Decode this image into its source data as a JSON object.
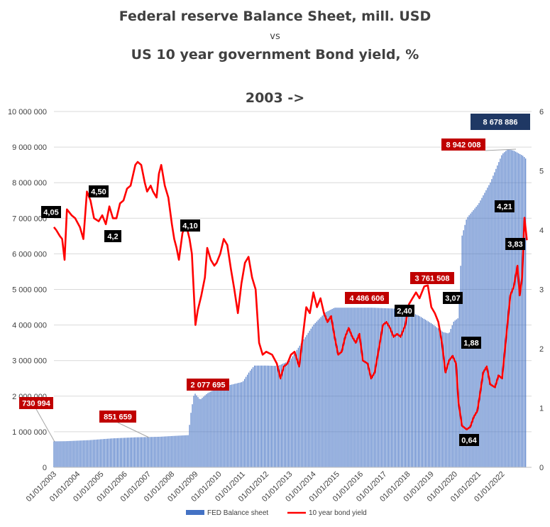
{
  "chart_data": {
    "type": "bar+line",
    "title": "Federal reserve Balance Sheet, mill. USD",
    "title_vs": "vs",
    "subtitle": "US 10 year government Bond yield, %",
    "period": "2003 ->",
    "left_axis": {
      "ylim": [
        0,
        10000000
      ],
      "ticks": [
        "0",
        "1 000 000",
        "2 000 000",
        "3 000 000",
        "4 000 000",
        "5 000 000",
        "6 000 000",
        "7 000 000",
        "8 000 000",
        "9 000 000",
        "10 000 000"
      ]
    },
    "right_axis": {
      "ylim": [
        0,
        6
      ],
      "ticks": [
        "0",
        "1",
        "2",
        "3",
        "4",
        "5",
        "6"
      ]
    },
    "x_axis": {
      "start": 2003.0,
      "end": 2023.25,
      "ticks": [
        "01/01/2003",
        "01/01/2004",
        "01/01/2005",
        "01/01/2006",
        "01/01/2007",
        "01/01/2008",
        "01/01/2009",
        "01/01/2010",
        "01/01/2011",
        "01/01/2012",
        "01/01/2013",
        "01/01/2014",
        "01/01/2015",
        "01/01/2016",
        "01/01/2017",
        "01/01/2018",
        "01/01/2019",
        "01/01/2020",
        "01/01/2021",
        "01/01/2022"
      ]
    },
    "grid": true,
    "legend_position": "bottom",
    "series": [
      {
        "name": "FED Balance sheet",
        "kind": "bar",
        "axis": "left",
        "color": "#4472C4",
        "points": [
          [
            2003.0,
            730994
          ],
          [
            2003.5,
            735000
          ],
          [
            2004.0,
            750000
          ],
          [
            2004.5,
            765000
          ],
          [
            2005.0,
            790000
          ],
          [
            2005.5,
            815000
          ],
          [
            2006.0,
            830000
          ],
          [
            2006.5,
            845000
          ],
          [
            2007.0,
            851659
          ],
          [
            2007.5,
            860000
          ],
          [
            2008.0,
            880000
          ],
          [
            2008.7,
            905000
          ],
          [
            2008.8,
            1500000
          ],
          [
            2008.95,
            2100000
          ],
          [
            2009.2,
            1900000
          ],
          [
            2009.5,
            2077695
          ],
          [
            2010.0,
            2250000
          ],
          [
            2010.5,
            2320000
          ],
          [
            2011.0,
            2400000
          ],
          [
            2011.3,
            2700000
          ],
          [
            2011.5,
            2860000
          ],
          [
            2012.0,
            2860000
          ],
          [
            2012.5,
            2850000
          ],
          [
            2013.0,
            3000000
          ],
          [
            2013.5,
            3500000
          ],
          [
            2014.0,
            4000000
          ],
          [
            2014.5,
            4350000
          ],
          [
            2014.9,
            4486606
          ],
          [
            2015.5,
            4486606
          ],
          [
            2016.5,
            4486606
          ],
          [
            2017.5,
            4460000
          ],
          [
            2018.0,
            4400000
          ],
          [
            2018.5,
            4250000
          ],
          [
            2019.0,
            4050000
          ],
          [
            2019.5,
            3800000
          ],
          [
            2019.75,
            3761508
          ],
          [
            2019.95,
            4100000
          ],
          [
            2020.15,
            4200000
          ],
          [
            2020.3,
            6500000
          ],
          [
            2020.5,
            7000000
          ],
          [
            2021.0,
            7400000
          ],
          [
            2021.5,
            8000000
          ],
          [
            2022.0,
            8800000
          ],
          [
            2022.25,
            8942008
          ],
          [
            2022.5,
            8900000
          ],
          [
            2022.9,
            8750000
          ],
          [
            2023.0,
            8678886
          ]
        ]
      },
      {
        "name": "10 year bond yield",
        "kind": "line",
        "axis": "right",
        "color": "#FF0000",
        "points": [
          [
            2003.0,
            4.05
          ],
          [
            2003.1,
            4.0
          ],
          [
            2003.25,
            3.9
          ],
          [
            2003.35,
            3.85
          ],
          [
            2003.45,
            3.5
          ],
          [
            2003.55,
            4.35
          ],
          [
            2003.75,
            4.25
          ],
          [
            2003.9,
            4.2
          ],
          [
            2004.1,
            4.05
          ],
          [
            2004.25,
            3.85
          ],
          [
            2004.4,
            4.65
          ],
          [
            2004.55,
            4.5
          ],
          [
            2004.7,
            4.2
          ],
          [
            2004.9,
            4.15
          ],
          [
            2005.05,
            4.25
          ],
          [
            2005.2,
            4.1
          ],
          [
            2005.35,
            4.4
          ],
          [
            2005.5,
            4.2
          ],
          [
            2005.65,
            4.2
          ],
          [
            2005.8,
            4.45
          ],
          [
            2005.95,
            4.5
          ],
          [
            2006.1,
            4.7
          ],
          [
            2006.25,
            4.75
          ],
          [
            2006.45,
            5.1
          ],
          [
            2006.55,
            5.15
          ],
          [
            2006.7,
            5.1
          ],
          [
            2006.85,
            4.8
          ],
          [
            2006.95,
            4.65
          ],
          [
            2007.1,
            4.75
          ],
          [
            2007.2,
            4.65
          ],
          [
            2007.35,
            4.55
          ],
          [
            2007.45,
            4.95
          ],
          [
            2007.55,
            5.1
          ],
          [
            2007.7,
            4.75
          ],
          [
            2007.85,
            4.55
          ],
          [
            2008.0,
            4.1
          ],
          [
            2008.1,
            3.85
          ],
          [
            2008.2,
            3.7
          ],
          [
            2008.3,
            3.5
          ],
          [
            2008.45,
            3.95
          ],
          [
            2008.6,
            4.1
          ],
          [
            2008.75,
            3.85
          ],
          [
            2008.85,
            3.6
          ],
          [
            2009.0,
            2.4
          ],
          [
            2009.1,
            2.65
          ],
          [
            2009.25,
            2.9
          ],
          [
            2009.4,
            3.2
          ],
          [
            2009.5,
            3.7
          ],
          [
            2009.65,
            3.5
          ],
          [
            2009.8,
            3.4
          ],
          [
            2009.9,
            3.45
          ],
          [
            2010.05,
            3.6
          ],
          [
            2010.2,
            3.85
          ],
          [
            2010.35,
            3.75
          ],
          [
            2010.5,
            3.35
          ],
          [
            2010.65,
            3.0
          ],
          [
            2010.8,
            2.6
          ],
          [
            2010.95,
            3.1
          ],
          [
            2011.1,
            3.45
          ],
          [
            2011.25,
            3.55
          ],
          [
            2011.4,
            3.2
          ],
          [
            2011.55,
            3.0
          ],
          [
            2011.7,
            2.1
          ],
          [
            2011.85,
            1.9
          ],
          [
            2012.0,
            1.95
          ],
          [
            2012.25,
            1.9
          ],
          [
            2012.45,
            1.75
          ],
          [
            2012.6,
            1.5
          ],
          [
            2012.75,
            1.7
          ],
          [
            2012.9,
            1.75
          ],
          [
            2013.05,
            1.9
          ],
          [
            2013.2,
            1.95
          ],
          [
            2013.4,
            1.7
          ],
          [
            2013.55,
            2.2
          ],
          [
            2013.7,
            2.7
          ],
          [
            2013.85,
            2.6
          ],
          [
            2014.0,
            2.95
          ],
          [
            2014.15,
            2.7
          ],
          [
            2014.3,
            2.85
          ],
          [
            2014.45,
            2.6
          ],
          [
            2014.6,
            2.45
          ],
          [
            2014.75,
            2.55
          ],
          [
            2014.9,
            2.2
          ],
          [
            2015.05,
            1.9
          ],
          [
            2015.2,
            1.95
          ],
          [
            2015.35,
            2.2
          ],
          [
            2015.5,
            2.35
          ],
          [
            2015.65,
            2.2
          ],
          [
            2015.8,
            2.1
          ],
          [
            2015.95,
            2.25
          ],
          [
            2016.1,
            1.8
          ],
          [
            2016.3,
            1.75
          ],
          [
            2016.45,
            1.5
          ],
          [
            2016.6,
            1.6
          ],
          [
            2016.8,
            2.05
          ],
          [
            2016.95,
            2.4
          ],
          [
            2017.1,
            2.45
          ],
          [
            2017.25,
            2.35
          ],
          [
            2017.4,
            2.2
          ],
          [
            2017.55,
            2.25
          ],
          [
            2017.7,
            2.2
          ],
          [
            2017.9,
            2.4
          ],
          [
            2018.05,
            2.75
          ],
          [
            2018.2,
            2.85
          ],
          [
            2018.35,
            2.95
          ],
          [
            2018.5,
            2.85
          ],
          [
            2018.7,
            3.05
          ],
          [
            2018.85,
            3.07
          ],
          [
            2019.0,
            2.7
          ],
          [
            2019.15,
            2.6
          ],
          [
            2019.3,
            2.45
          ],
          [
            2019.45,
            2.1
          ],
          [
            2019.6,
            1.6
          ],
          [
            2019.75,
            1.8
          ],
          [
            2019.9,
            1.88
          ],
          [
            2020.05,
            1.75
          ],
          [
            2020.15,
            1.1
          ],
          [
            2020.3,
            0.7
          ],
          [
            2020.5,
            0.64
          ],
          [
            2020.65,
            0.68
          ],
          [
            2020.8,
            0.85
          ],
          [
            2020.95,
            0.95
          ],
          [
            2021.05,
            1.2
          ],
          [
            2021.2,
            1.6
          ],
          [
            2021.35,
            1.7
          ],
          [
            2021.5,
            1.4
          ],
          [
            2021.7,
            1.35
          ],
          [
            2021.85,
            1.55
          ],
          [
            2022.0,
            1.5
          ],
          [
            2022.1,
            1.9
          ],
          [
            2022.2,
            2.3
          ],
          [
            2022.35,
            2.9
          ],
          [
            2022.5,
            3.05
          ],
          [
            2022.65,
            3.4
          ],
          [
            2022.75,
            2.9
          ],
          [
            2022.85,
            3.2
          ],
          [
            2022.95,
            4.21
          ],
          [
            2023.05,
            3.83
          ]
        ]
      }
    ],
    "annotations": [
      {
        "text": "730 994",
        "style": "red"
      },
      {
        "text": "851 659",
        "style": "red"
      },
      {
        "text": "2 077 695",
        "style": "red"
      },
      {
        "text": "4 486 606",
        "style": "red"
      },
      {
        "text": "3 761 508",
        "style": "red"
      },
      {
        "text": "8 942 008",
        "style": "red"
      },
      {
        "text": "8 678 886",
        "style": "navy"
      },
      {
        "text": "4,05",
        "style": "black"
      },
      {
        "text": "4,50",
        "style": "black"
      },
      {
        "text": "4,2",
        "style": "black"
      },
      {
        "text": "4,10",
        "style": "black"
      },
      {
        "text": "2,40",
        "style": "black"
      },
      {
        "text": "3,07",
        "style": "black"
      },
      {
        "text": "1,88",
        "style": "black"
      },
      {
        "text": "0,64",
        "style": "black"
      },
      {
        "text": "4,21",
        "style": "black"
      },
      {
        "text": "3,83",
        "style": "black"
      }
    ]
  }
}
